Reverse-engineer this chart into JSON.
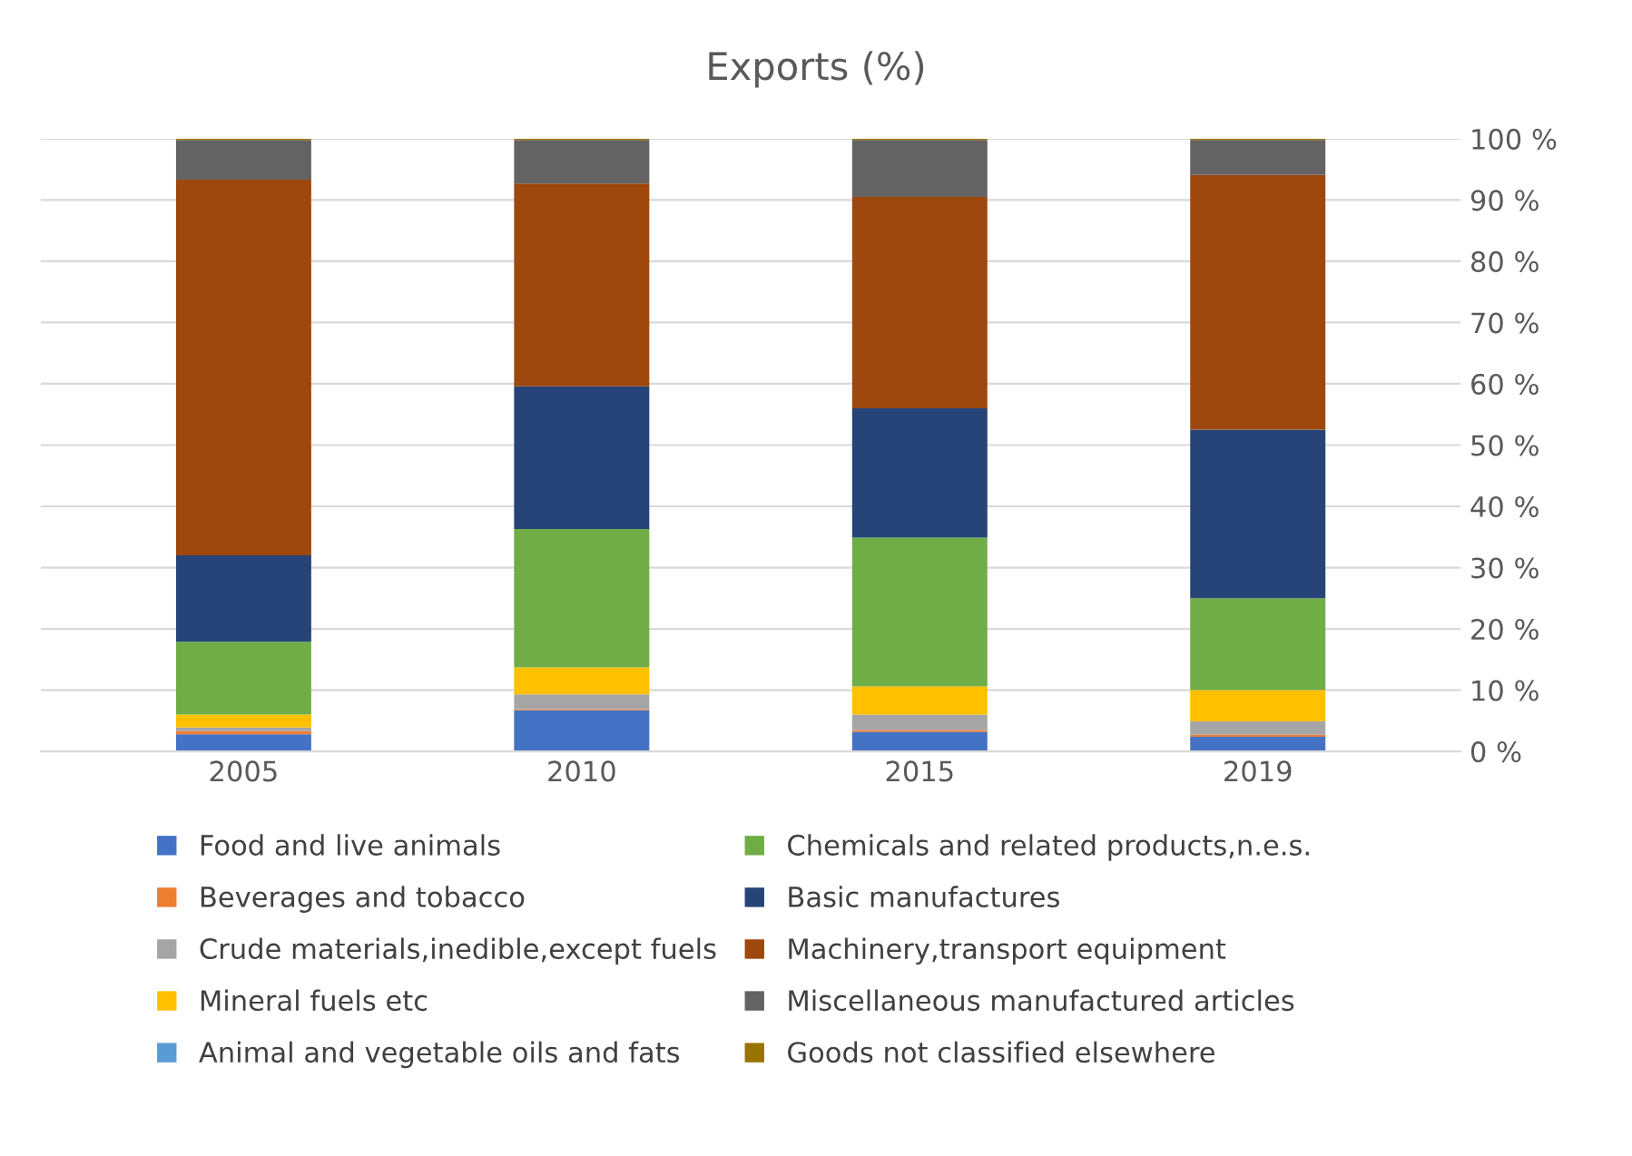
{
  "chart_data": {
    "type": "bar",
    "title": "Exports (%)",
    "stacked": true,
    "categories": [
      "2005",
      "2010",
      "2015",
      "2019"
    ],
    "series": [
      {
        "name": "Food and live animals",
        "color": "#4472c4",
        "values": [
          2.8,
          6.7,
          3.2,
          2.4
        ]
      },
      {
        "name": "Beverages and tobacco",
        "color": "#ed7d31",
        "values": [
          0.5,
          0.2,
          0.3,
          0.3
        ]
      },
      {
        "name": "Crude materials,inedible,except fuels",
        "color": "#a5a5a5",
        "values": [
          0.6,
          2.4,
          2.5,
          2.2
        ]
      },
      {
        "name": "Mineral fuels etc",
        "color": "#ffc000",
        "values": [
          2.1,
          4.4,
          4.6,
          5.1
        ]
      },
      {
        "name": "Animal and vegetable oils and fats",
        "color": "#5b9bd5",
        "values": [
          0,
          0,
          0,
          0
        ]
      },
      {
        "name": "Chemicals and related products,n.e.s.",
        "color": "#70ad47",
        "values": [
          11.9,
          22.6,
          24.3,
          15.0
        ]
      },
      {
        "name": "Basic manufactures",
        "color": "#264478",
        "values": [
          14.1,
          23.3,
          21.1,
          27.5
        ]
      },
      {
        "name": "Machinery,transport equipment",
        "color": "#9e480e",
        "values": [
          61.3,
          33.1,
          34.5,
          41.6
        ]
      },
      {
        "name": "Miscellaneous manufactured articles",
        "color": "#636363",
        "values": [
          6.5,
          7.1,
          9.3,
          5.7
        ]
      },
      {
        "name": "Goods not classified elsewhere",
        "color": "#997300",
        "values": [
          0.2,
          0.2,
          0.2,
          0.2
        ]
      }
    ],
    "ylim": [
      0,
      100
    ],
    "yticks": [
      {
        "value": 0,
        "label": "0 %"
      },
      {
        "value": 10,
        "label": "10 %"
      },
      {
        "value": 20,
        "label": "20 %"
      },
      {
        "value": 30,
        "label": "30 %"
      },
      {
        "value": 40,
        "label": "40 %"
      },
      {
        "value": 50,
        "label": "50 %"
      },
      {
        "value": 60,
        "label": "60 %"
      },
      {
        "value": 70,
        "label": "70 %"
      },
      {
        "value": 80,
        "label": "80 %"
      },
      {
        "value": 90,
        "label": "90 %"
      },
      {
        "value": 100,
        "label": "100 %"
      }
    ],
    "grid": "y",
    "legend": "bottom"
  }
}
